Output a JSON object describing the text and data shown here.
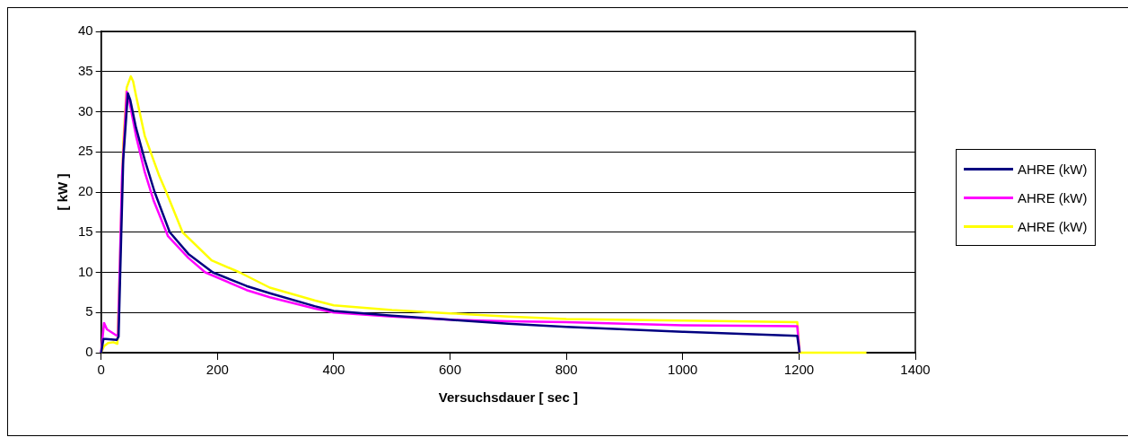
{
  "chart_data": {
    "type": "line",
    "xlabel": "Versuchsdauer [ sec ]",
    "ylabel": "[ kW ]",
    "xlim": [
      0,
      1400
    ],
    "xticks": [
      0,
      200,
      400,
      600,
      800,
      1000,
      1200,
      1400
    ],
    "ylim": [
      0,
      40
    ],
    "yticks": [
      0,
      5,
      10,
      15,
      20,
      25,
      30,
      35,
      40
    ],
    "grid": "y",
    "legend": "right",
    "marker": "none",
    "line_style": "solid",
    "series": [
      {
        "name": "AHRE (kW)",
        "color": "#000080",
        "x": [
          0,
          4,
          8,
          27,
          30,
          38,
          46,
          50,
          60,
          75,
          92,
          118,
          150,
          192,
          250,
          290,
          367,
          400,
          500,
          600,
          700,
          800,
          1000,
          1197,
          1201
        ],
        "values": [
          0,
          1.7,
          1.7,
          1.6,
          2.0,
          24,
          32.3,
          31.5,
          28,
          24,
          20,
          15,
          12.3,
          10,
          8.3,
          7.4,
          5.8,
          5.2,
          4.6,
          4.1,
          3.6,
          3.2,
          2.6,
          2.1,
          0
        ]
      },
      {
        "name": "AHRE (kW)",
        "color": "#ff00ff",
        "x": [
          0,
          5,
          10,
          25,
          29,
          36,
          44,
          48,
          60,
          75,
          90,
          115,
          150,
          179,
          250,
          290,
          367,
          400,
          500,
          600,
          700,
          800,
          1000,
          1197,
          1201
        ],
        "values": [
          0,
          3.7,
          2.9,
          2.2,
          2.1,
          22,
          32.5,
          31.5,
          27,
          22.5,
          19,
          14.5,
          11.8,
          10,
          7.8,
          6.9,
          5.5,
          5.0,
          4.5,
          4.1,
          3.9,
          3.8,
          3.4,
          3.3,
          0
        ]
      },
      {
        "name": "AHRE (kW)",
        "color": "#ffff00",
        "x": [
          0,
          5,
          12,
          21,
          28,
          32,
          38,
          44,
          51,
          55,
          60,
          75,
          100,
          112,
          140,
          190,
          238,
          290,
          367,
          400,
          500,
          600,
          700,
          800,
          1000,
          1197,
          1201,
          1316
        ],
        "values": [
          0,
          0.8,
          1.2,
          1.3,
          1.1,
          10,
          26,
          33,
          34.4,
          33.8,
          32,
          27,
          22,
          20,
          15,
          11.5,
          10,
          8.1,
          6.5,
          5.9,
          5.3,
          4.9,
          4.5,
          4.2,
          4.0,
          3.8,
          0,
          0
        ]
      }
    ]
  }
}
